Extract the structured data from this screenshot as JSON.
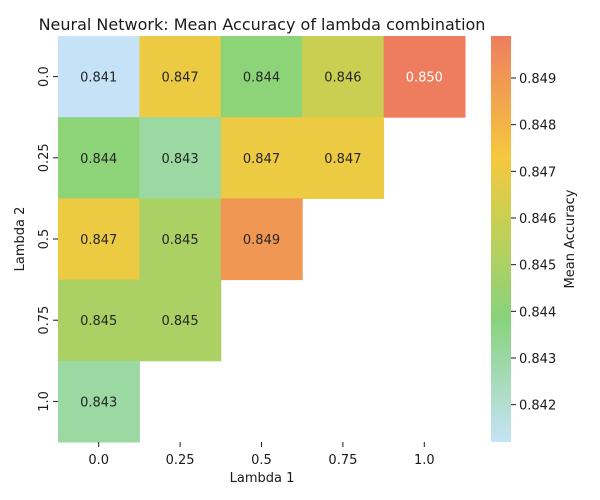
{
  "chart_data": {
    "type": "heatmap",
    "title": "Neural Network: Mean Accuracy of lambda combination",
    "xlabel": "Lambda 1",
    "ylabel": "Lambda 2",
    "x_categories": [
      "0.0",
      "0.25",
      "0.5",
      "0.75",
      "1.0"
    ],
    "y_categories": [
      "0.0",
      "0.25",
      "0.5",
      "0.75",
      "1.0"
    ],
    "values": [
      [
        0.841,
        0.847,
        0.844,
        0.846,
        0.85
      ],
      [
        0.844,
        0.843,
        0.847,
        0.847,
        null
      ],
      [
        0.847,
        0.845,
        0.849,
        null,
        null
      ],
      [
        0.845,
        0.845,
        null,
        null,
        null
      ],
      [
        0.843,
        null,
        null,
        null,
        null
      ]
    ],
    "colorbar": {
      "label": "Mean Accuracy",
      "range": [
        0.8412,
        0.8499
      ],
      "ticks": [
        "0.842",
        "0.843",
        "0.844",
        "0.845",
        "0.846",
        "0.847",
        "0.848",
        "0.849"
      ]
    },
    "colors": {
      "low": "#c6e2f7",
      "mid_low": "#87d37c",
      "mid": "#f6c83e",
      "high": "#ee7d5f"
    }
  }
}
